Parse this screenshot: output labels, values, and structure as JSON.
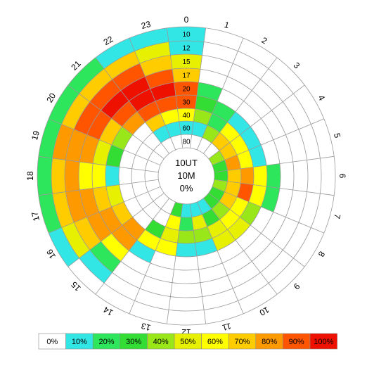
{
  "chart_data": {
    "type": "heatmap",
    "subtype": "polar-heatmap",
    "center": {
      "line1": "10UT",
      "line2": "10M",
      "line3": "0%"
    },
    "hour_labels": [
      "0",
      "1",
      "2",
      "3",
      "4",
      "5",
      "6",
      "7",
      "8",
      "9",
      "10",
      "11",
      "12",
      "13",
      "14",
      "15",
      "16",
      "17",
      "18",
      "19",
      "20",
      "21",
      "22",
      "23"
    ],
    "ring_labels": [
      "10",
      "12",
      "15",
      "17",
      "20",
      "30",
      "40",
      "60",
      "80"
    ],
    "legend": {
      "labels": [
        "0%",
        "10%",
        "20%",
        "30%",
        "40%",
        "50%",
        "60%",
        "70%",
        "80%",
        "90%",
        "100%"
      ],
      "colors": [
        "#ffffff",
        "#33e6e6",
        "#2ee65c",
        "#33dd33",
        "#99e619",
        "#e6f000",
        "#ffff00",
        "#ffcc00",
        "#ff9900",
        "#ff5500",
        "#ee1100"
      ]
    },
    "values": [
      [
        10,
        10,
        50,
        70,
        90,
        90,
        60,
        10,
        0
      ],
      [
        0,
        0,
        0,
        0,
        20,
        30,
        40,
        10,
        0
      ],
      [
        0,
        0,
        0,
        0,
        0,
        20,
        20,
        40,
        0
      ],
      [
        0,
        0,
        0,
        0,
        0,
        10,
        60,
        70,
        0
      ],
      [
        0,
        0,
        0,
        0,
        0,
        10,
        60,
        70,
        40
      ],
      [
        0,
        0,
        0,
        0,
        0,
        10,
        60,
        80,
        30
      ],
      [
        0,
        0,
        0,
        0,
        20,
        60,
        80,
        70,
        30
      ],
      [
        0,
        0,
        0,
        0,
        20,
        60,
        90,
        70,
        40
      ],
      [
        0,
        0,
        0,
        0,
        0,
        40,
        60,
        70,
        30
      ],
      [
        0,
        0,
        0,
        0,
        0,
        50,
        60,
        40,
        30
      ],
      [
        0,
        0,
        0,
        0,
        0,
        50,
        50,
        30,
        10
      ],
      [
        0,
        0,
        0,
        0,
        0,
        10,
        40,
        50,
        10
      ],
      [
        0,
        0,
        0,
        0,
        0,
        10,
        40,
        20,
        10
      ],
      [
        0,
        0,
        0,
        0,
        0,
        60,
        50,
        60,
        30
      ],
      [
        0,
        0,
        0,
        0,
        10,
        60,
        30,
        0,
        0
      ],
      [
        0,
        10,
        20,
        60,
        80,
        80,
        0,
        0,
        0
      ],
      [
        10,
        50,
        70,
        80,
        80,
        70,
        0,
        0,
        0
      ],
      [
        20,
        70,
        80,
        80,
        70,
        50,
        0,
        0,
        0
      ],
      [
        20,
        70,
        80,
        60,
        60,
        10,
        0,
        0,
        0
      ],
      [
        20,
        80,
        80,
        80,
        50,
        30,
        0,
        0,
        0
      ],
      [
        20,
        70,
        90,
        90,
        70,
        40,
        0,
        0,
        0
      ],
      [
        20,
        70,
        90,
        100,
        90,
        80,
        0,
        0,
        0
      ],
      [
        10,
        70,
        90,
        100,
        100,
        90,
        70,
        10,
        0
      ],
      [
        10,
        50,
        70,
        90,
        100,
        90,
        60,
        10,
        0
      ]
    ]
  }
}
